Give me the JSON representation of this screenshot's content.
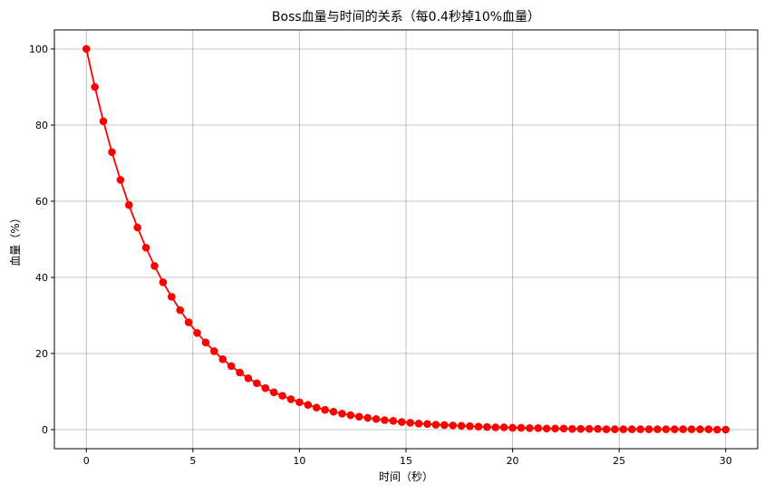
{
  "chart_data": {
    "type": "line",
    "title": "Boss血量与时间的关系（每0.4秒掉10%血量）",
    "xlabel": "时间（秒）",
    "ylabel": "血量（%）",
    "xlim": [
      -1.5,
      31.5
    ],
    "ylim": [
      -5,
      105
    ],
    "xticks": [
      0,
      5,
      10,
      15,
      20,
      25,
      30
    ],
    "yticks": [
      0,
      20,
      40,
      60,
      80,
      100
    ],
    "grid": true,
    "series": [
      {
        "color": "#ff0000",
        "marker": "circle",
        "x": [
          0.0,
          0.4,
          0.8,
          1.2,
          1.6,
          2.0,
          2.4,
          2.8,
          3.2,
          3.6,
          4.0,
          4.4,
          4.8,
          5.2,
          5.6,
          6.0,
          6.4,
          6.8,
          7.2,
          7.6,
          8.0,
          8.4,
          8.8,
          9.2,
          9.6,
          10.0,
          10.4,
          10.8,
          11.2,
          11.6,
          12.0,
          12.4,
          12.8,
          13.2,
          13.6,
          14.0,
          14.4,
          14.8,
          15.2,
          15.6,
          16.0,
          16.4,
          16.8,
          17.2,
          17.6,
          18.0,
          18.4,
          18.8,
          19.2,
          19.6,
          20.0,
          20.4,
          20.8,
          21.2,
          21.6,
          22.0,
          22.4,
          22.8,
          23.2,
          23.6,
          24.0,
          24.4,
          24.8,
          25.2,
          25.6,
          26.0,
          26.4,
          26.8,
          27.2,
          27.6,
          28.0,
          28.4,
          28.8,
          29.2,
          29.6,
          30.0
        ],
        "y": [
          100.0,
          90.0,
          81.0,
          72.9,
          65.6,
          59.0,
          53.1,
          47.8,
          43.0,
          38.7,
          34.9,
          31.4,
          28.2,
          25.4,
          22.9,
          20.6,
          18.5,
          16.7,
          15.0,
          13.5,
          12.2,
          10.9,
          9.8,
          8.9,
          8.0,
          7.2,
          6.5,
          5.8,
          5.2,
          4.7,
          4.2,
          3.8,
          3.4,
          3.1,
          2.8,
          2.5,
          2.3,
          2.0,
          1.8,
          1.6,
          1.5,
          1.3,
          1.2,
          1.1,
          1.0,
          0.9,
          0.8,
          0.7,
          0.6,
          0.6,
          0.5,
          0.5,
          0.4,
          0.4,
          0.3,
          0.3,
          0.3,
          0.2,
          0.2,
          0.2,
          0.2,
          0.1,
          0.1,
          0.1,
          0.1,
          0.1,
          0.1,
          0.1,
          0.1,
          0.1,
          0.1,
          0.1,
          0.1,
          0.1,
          0.0,
          0.0
        ]
      }
    ]
  }
}
